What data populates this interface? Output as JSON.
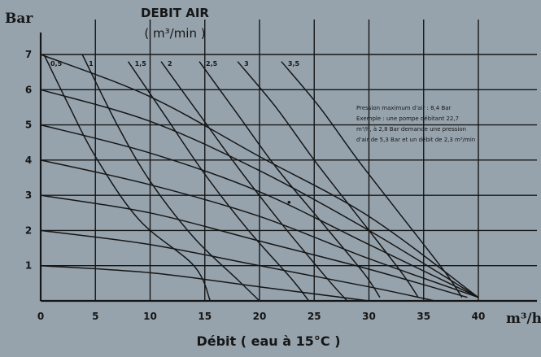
{
  "chart_data": {
    "type": "line",
    "title": "DEBIT AIR",
    "subtitle": "( m³/min )",
    "xlabel": "Débit ( eau à 15°C )",
    "ylabel": "Bar",
    "x_unit": "m³/h",
    "xlim": [
      0,
      40
    ],
    "ylim": [
      0,
      7
    ],
    "x_ticks": [
      0,
      5,
      10,
      15,
      20,
      25,
      30,
      35,
      40
    ],
    "y_ticks": [
      1,
      2,
      3,
      4,
      5,
      6,
      7
    ],
    "grid": true,
    "note": [
      "Pression maximum d'air : 8,4 Bar",
      "Exemple : une pompe débitant 22,7",
      "m³/h, à 2,8 Bar demande une pression",
      "d'air de 5,3 Bar et un débit de 2,3 m³/min"
    ],
    "air_flow_curves": [
      {
        "label": "0,5",
        "points": [
          [
            0.3,
            7
          ],
          [
            2.5,
            5.6
          ],
          [
            5,
            4.1
          ],
          [
            9,
            2.3
          ],
          [
            14,
            1
          ],
          [
            15.5,
            0
          ]
        ]
      },
      {
        "label": "1",
        "points": [
          [
            3.8,
            7
          ],
          [
            7,
            5
          ],
          [
            10,
            3.4
          ],
          [
            14,
            1.8
          ],
          [
            18,
            0.6
          ],
          [
            20,
            0
          ]
        ]
      },
      {
        "label": "1,5",
        "points": [
          [
            8,
            6.8
          ],
          [
            11.5,
            5.2
          ],
          [
            15,
            3.6
          ],
          [
            19,
            2
          ],
          [
            23,
            0.6
          ],
          [
            24.5,
            0
          ]
        ]
      },
      {
        "label": "2",
        "points": [
          [
            11,
            6.8
          ],
          [
            14.5,
            5.3
          ],
          [
            18,
            3.8
          ],
          [
            22,
            2.2
          ],
          [
            26,
            0.7
          ],
          [
            28,
            0
          ]
        ]
      },
      {
        "label": "2,5",
        "points": [
          [
            14.5,
            6.8
          ],
          [
            18,
            5.3
          ],
          [
            21.5,
            3.8
          ],
          [
            25.5,
            2.3
          ],
          [
            29.5,
            0.8
          ],
          [
            31,
            0.1
          ]
        ]
      },
      {
        "label": "3",
        "points": [
          [
            18,
            6.8
          ],
          [
            21.5,
            5.5
          ],
          [
            25,
            4
          ],
          [
            29,
            2.4
          ],
          [
            33,
            0.8
          ],
          [
            34.5,
            0.1
          ]
        ]
      },
      {
        "label": "3,5",
        "points": [
          [
            22,
            6.8
          ],
          [
            25.5,
            5.5
          ],
          [
            29,
            4
          ],
          [
            33,
            2.4
          ],
          [
            37,
            0.8
          ],
          [
            38.5,
            0.1
          ]
        ]
      }
    ],
    "air_pressure_curves": [
      {
        "air_pressure": 7,
        "points": [
          [
            0,
            7
          ],
          [
            10,
            5.8
          ],
          [
            20,
            4.1
          ],
          [
            30,
            2.4
          ],
          [
            40,
            0.1
          ]
        ]
      },
      {
        "air_pressure": 6,
        "points": [
          [
            0,
            6
          ],
          [
            10,
            5.1
          ],
          [
            20,
            3.7
          ],
          [
            30,
            2
          ],
          [
            40,
            0.1
          ]
        ]
      },
      {
        "air_pressure": 5,
        "points": [
          [
            0,
            5
          ],
          [
            10,
            4.2
          ],
          [
            20,
            3.1
          ],
          [
            30,
            1.6
          ],
          [
            40,
            0.1
          ]
        ]
      },
      {
        "air_pressure": 4,
        "points": [
          [
            0,
            4
          ],
          [
            10,
            3.3
          ],
          [
            20,
            2.4
          ],
          [
            30,
            1.2
          ],
          [
            40,
            0.1
          ]
        ]
      },
      {
        "air_pressure": 3,
        "points": [
          [
            0,
            3
          ],
          [
            10,
            2.5
          ],
          [
            20,
            1.7
          ],
          [
            30,
            0.9
          ],
          [
            39,
            0.1
          ]
        ]
      },
      {
        "air_pressure": 2,
        "points": [
          [
            0,
            2
          ],
          [
            10,
            1.6
          ],
          [
            20,
            1
          ],
          [
            30,
            0.4
          ],
          [
            36,
            0
          ]
        ]
      },
      {
        "air_pressure": 1,
        "points": [
          [
            0,
            1
          ],
          [
            10,
            0.8
          ],
          [
            20,
            0.4
          ],
          [
            30,
            0
          ]
        ]
      }
    ],
    "example_point": {
      "x": 22.7,
      "y": 2.8
    }
  },
  "colors": {
    "background": "#96a3ad",
    "ink": "#161616"
  }
}
